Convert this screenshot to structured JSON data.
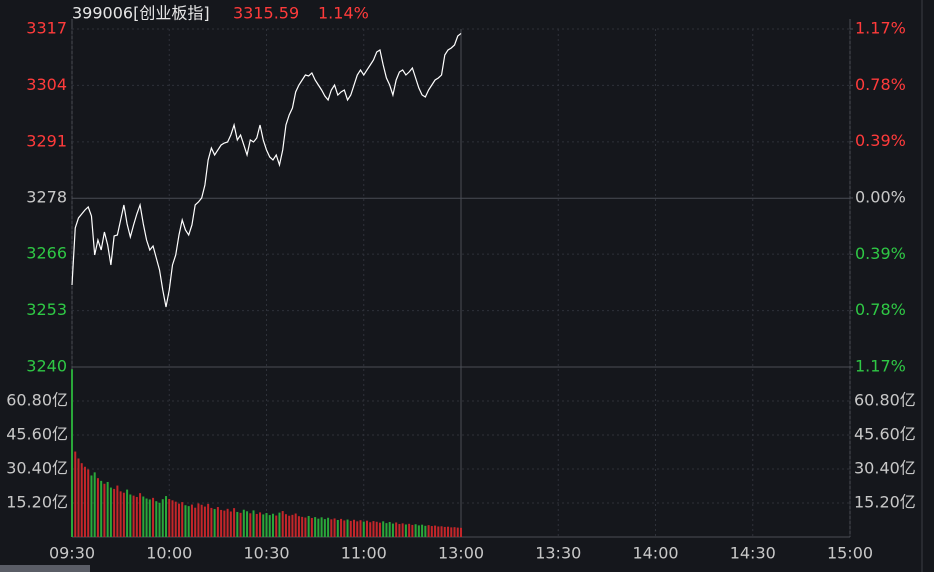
{
  "chart_data": {
    "type": "intraday",
    "title": "399006[创业板指]",
    "last_price": "3315.59",
    "change": "1.14%",
    "up_color": "#ff3b3b",
    "down_color": "#2fc845",
    "flat_color": "#c8c8c8",
    "line_color": "#ffffff",
    "up_bar_color": "#c4262a",
    "down_bar_color": "#2aa83a",
    "xlim": [
      0,
      240
    ],
    "xticks": [
      {
        "value": 0,
        "label": "09:30"
      },
      {
        "value": 30,
        "label": "10:00"
      },
      {
        "value": 60,
        "label": "10:30"
      },
      {
        "value": 90,
        "label": "11:00"
      },
      {
        "value": 120,
        "label": "13:00"
      },
      {
        "value": 150,
        "label": "13:30"
      },
      {
        "value": 180,
        "label": "14:00"
      },
      {
        "value": 210,
        "label": "14:30"
      },
      {
        "value": 240,
        "label": "15:00"
      }
    ],
    "ylim": [
      3239.9,
      3316.6
    ],
    "yticks": [
      {
        "value": 3316.6,
        "label": "3317"
      },
      {
        "value": 3303.8,
        "label": "3304"
      },
      {
        "value": 3291.0,
        "label": "3291"
      },
      {
        "value": 3278.2,
        "label": "3278"
      },
      {
        "value": 3265.5,
        "label": "3266"
      },
      {
        "value": 3252.7,
        "label": "3253"
      },
      {
        "value": 3239.9,
        "label": "3240"
      }
    ],
    "y2lim": [
      -1.17,
      1.17
    ],
    "y2ticks": [
      {
        "value": 1.17,
        "label": "1.17%"
      },
      {
        "value": 0.78,
        "label": "0.78%"
      },
      {
        "value": 0.39,
        "label": "0.39%"
      },
      {
        "value": 0,
        "label": "0.00%"
      },
      {
        "value": -0.39,
        "label": "0.39%"
      },
      {
        "value": -0.78,
        "label": "0.78%"
      },
      {
        "value": -1.17,
        "label": "1.17%"
      }
    ],
    "vlim": [
      0,
      76
    ],
    "vticks": [
      {
        "value": 60.8,
        "label": "60.80亿"
      },
      {
        "value": 45.6,
        "label": "45.60亿"
      },
      {
        "value": 30.4,
        "label": "30.40亿"
      },
      {
        "value": 15.2,
        "label": "15.20亿"
      }
    ],
    "x": [
      0,
      1,
      2,
      3,
      4,
      5,
      6,
      7,
      8,
      9,
      10,
      11,
      12,
      13,
      14,
      15,
      16,
      17,
      18,
      19,
      20,
      21,
      22,
      23,
      24,
      25,
      26,
      27,
      28,
      29,
      30,
      31,
      32,
      33,
      34,
      35,
      36,
      37,
      38,
      39,
      40,
      41,
      42,
      43,
      44,
      45,
      46,
      47,
      48,
      49,
      50,
      51,
      52,
      53,
      54,
      55,
      56,
      57,
      58,
      59,
      60,
      61,
      62,
      63,
      64,
      65,
      66,
      67,
      68,
      69,
      70,
      71,
      72,
      73,
      74,
      75,
      76,
      77,
      78,
      79,
      80,
      81,
      82,
      83,
      84,
      85,
      86,
      87,
      88,
      89,
      90,
      91,
      92,
      93,
      94,
      95,
      96,
      97,
      98,
      99,
      100,
      101,
      102,
      103,
      104,
      105,
      106,
      107,
      108,
      109,
      110,
      111,
      112,
      113,
      114,
      115,
      116,
      117,
      118,
      119,
      120
    ],
    "values": [
      3258.51,
      3271.45,
      3273.72,
      3274.62,
      3275.53,
      3276.21,
      3274.17,
      3265.32,
      3268.72,
      3266.46,
      3270.54,
      3267.59,
      3263.05,
      3269.63,
      3269.86,
      3273.26,
      3276.67,
      3272.35,
      3269.4,
      3272.13,
      3274.62,
      3276.67,
      3272.35,
      3268.72,
      3266.46,
      3267.36,
      3264.64,
      3261.92,
      3257.38,
      3253.52,
      3257.38,
      3263.05,
      3265.32,
      3269.86,
      3273.26,
      3270.99,
      3269.86,
      3272.13,
      3276.67,
      3277.35,
      3278.25,
      3281.2,
      3286.88,
      3289.6,
      3288.01,
      3289.15,
      3290.28,
      3290.73,
      3290.96,
      3292.55,
      3294.82,
      3291.41,
      3292.55,
      3290.28,
      3288.01,
      3291.41,
      3290.96,
      3291.87,
      3294.82,
      3291.41,
      3289.15,
      3287.56,
      3286.88,
      3288.01,
      3285.74,
      3289.15,
      3294.82,
      3297.09,
      3298.67,
      3302.31,
      3303.89,
      3305.03,
      3306.16,
      3305.94,
      3306.62,
      3305.03,
      3303.89,
      3302.76,
      3301.4,
      3300.49,
      3302.76,
      3303.89,
      3301.62,
      3302.31,
      3302.76,
      3300.49,
      3301.62,
      3303.89,
      3306.16,
      3307.3,
      3306.16,
      3307.3,
      3308.43,
      3309.57,
      3311.38,
      3311.84,
      3308.43,
      3305.48,
      3303.89,
      3301.62,
      3305.03,
      3306.84,
      3307.3,
      3306.16,
      3306.84,
      3307.75,
      3305.48,
      3303.21,
      3301.62,
      3301.17,
      3302.76,
      3303.89,
      3305.03,
      3305.48,
      3306.16,
      3310.7,
      3311.84,
      3312.29,
      3312.97,
      3315.01,
      3315.59
    ],
    "volumes": [
      75.0,
      38.2,
      35.1,
      33.0,
      31.4,
      30.2,
      27.5,
      28.9,
      26.3,
      25.1,
      23.8,
      24.6,
      22.1,
      21.5,
      23.0,
      20.4,
      19.8,
      21.2,
      19.0,
      18.5,
      17.9,
      19.6,
      18.1,
      17.2,
      16.8,
      17.5,
      16.0,
      15.3,
      16.9,
      18.3,
      17.0,
      16.4,
      15.8,
      14.9,
      15.6,
      14.2,
      13.8,
      14.5,
      13.1,
      15.0,
      14.4,
      13.6,
      14.8,
      13.0,
      12.5,
      13.4,
      12.1,
      11.8,
      12.6,
      11.4,
      12.9,
      11.2,
      10.8,
      12.2,
      11.5,
      10.6,
      11.9,
      10.3,
      11.0,
      10.1,
      10.7,
      9.8,
      10.4,
      9.6,
      10.9,
      11.6,
      10.2,
      9.5,
      9.9,
      10.5,
      9.3,
      9.0,
      8.7,
      9.4,
      8.5,
      8.9,
      8.2,
      8.8,
      8.0,
      8.6,
      7.9,
      8.3,
      7.6,
      8.1,
      7.4,
      7.8,
      7.2,
      7.7,
      7.0,
      7.5,
      6.9,
      7.3,
      6.6,
      7.1,
      6.8,
      6.4,
      7.0,
      6.2,
      6.7,
      6.0,
      6.5,
      5.8,
      6.1,
      5.6,
      5.9,
      5.4,
      5.7,
      5.2,
      5.5,
      5.0,
      5.3,
      4.9,
      5.1,
      4.7,
      4.8,
      4.5,
      4.6,
      4.3,
      4.4,
      4.2,
      4.1
    ]
  }
}
